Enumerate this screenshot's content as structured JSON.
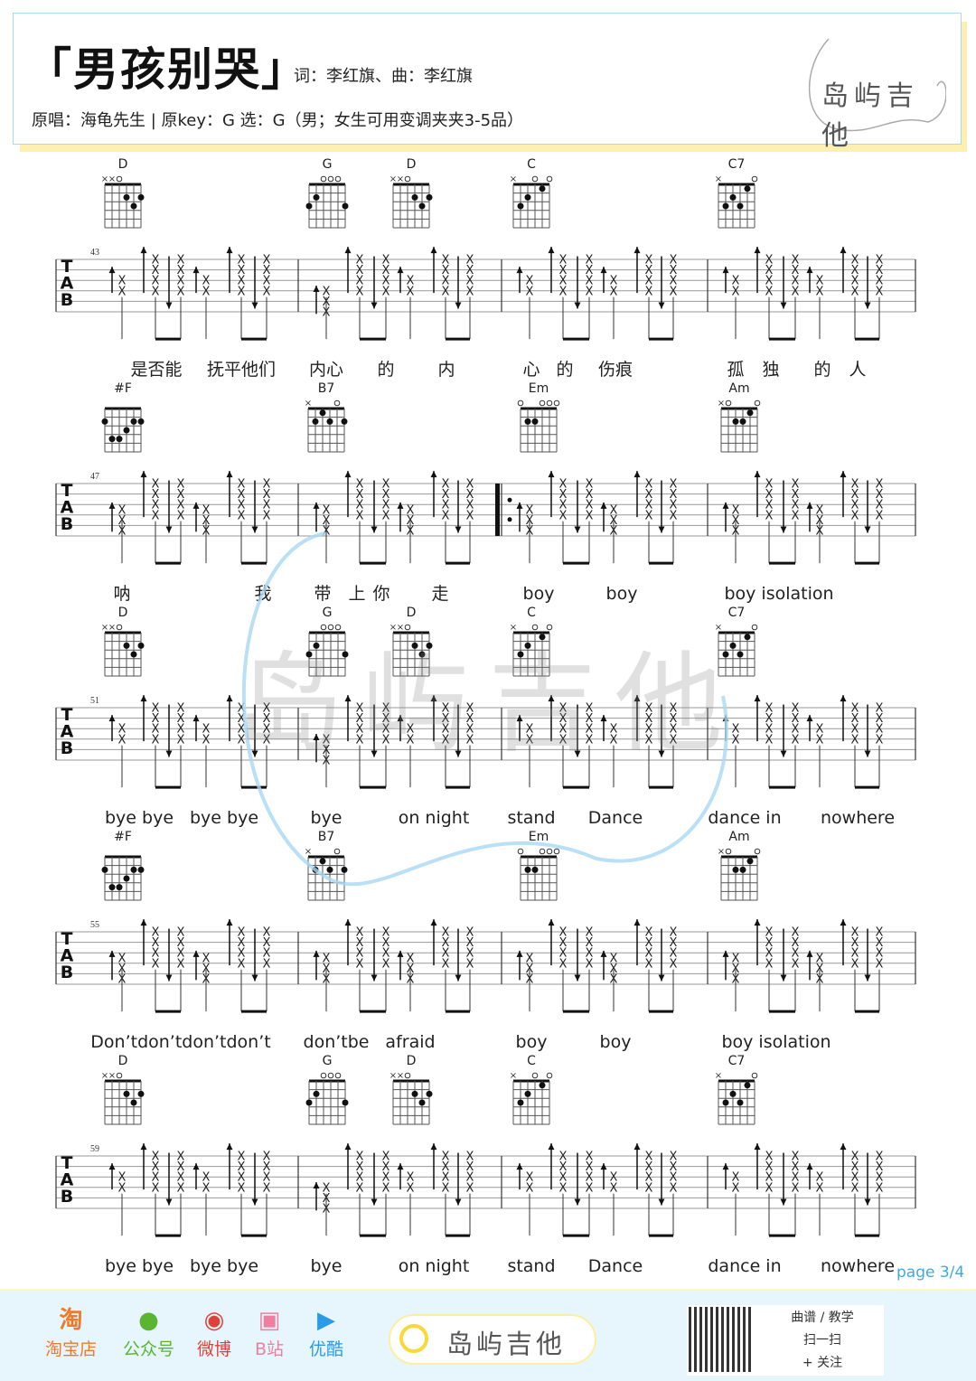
{
  "header": {
    "title": "「男孩别哭」",
    "credits": "词：李红旗、曲：李红旗",
    "meta": "原唱：海龟先生 | 原key：G 选：G（男；女生可用变调夹夹3-5品）",
    "logo_text": "岛屿吉他"
  },
  "systems": [
    {
      "measure_number": "43",
      "chords": [
        {
          "name": "D",
          "fingering": "xx0232"
        },
        {
          "name": "G",
          "fingering": "320003"
        },
        {
          "name": "D",
          "fingering": "xx0232"
        },
        {
          "name": "C",
          "fingering": "x32010"
        },
        {
          "name": "C7",
          "fingering": "x32310"
        }
      ],
      "lyrics": [
        "是否能",
        "抚平他们",
        "内心",
        "的",
        "内",
        "心",
        "的",
        "伤痕",
        "孤",
        "独",
        "的",
        "人"
      ]
    },
    {
      "measure_number": "47",
      "chords": [
        {
          "name": "#F",
          "fingering": "244322"
        },
        {
          "name": "B7",
          "fingering": "x21202"
        },
        {
          "name": "Em",
          "fingering": "022000"
        },
        {
          "name": "Am",
          "fingering": "x02210"
        }
      ],
      "lyrics": [
        "呐",
        "我",
        "带",
        "上",
        "你",
        "走",
        "boy",
        "boy",
        "boy  isolation"
      ]
    },
    {
      "measure_number": "51",
      "chords": [
        {
          "name": "D",
          "fingering": "xx0232"
        },
        {
          "name": "G",
          "fingering": "320003"
        },
        {
          "name": "D",
          "fingering": "xx0232"
        },
        {
          "name": "C",
          "fingering": "x32010"
        },
        {
          "name": "C7",
          "fingering": "x32310"
        }
      ],
      "lyrics": [
        "bye bye",
        "bye bye",
        "bye",
        "on night",
        "stand",
        "Dance",
        "dance in",
        "nowhere"
      ]
    },
    {
      "measure_number": "55",
      "chords": [
        {
          "name": "#F",
          "fingering": "244322"
        },
        {
          "name": "B7",
          "fingering": "x21202"
        },
        {
          "name": "Em",
          "fingering": "022000"
        },
        {
          "name": "Am",
          "fingering": "x02210"
        }
      ],
      "lyrics": [
        "Don’tdon’tdon’tdon’t",
        "don’tbe",
        "afraid",
        "boy",
        "boy",
        "boy  isolation"
      ]
    },
    {
      "measure_number": "59",
      "chords": [
        {
          "name": "D",
          "fingering": "xx0232"
        },
        {
          "name": "G",
          "fingering": "320003"
        },
        {
          "name": "D",
          "fingering": "xx0232"
        },
        {
          "name": "C",
          "fingering": "x32010"
        },
        {
          "name": "C7",
          "fingering": "x32310"
        }
      ],
      "lyrics": [
        "bye bye",
        "bye bye",
        "bye",
        "on night",
        "stand",
        "Dance",
        "dance in",
        "nowhere"
      ]
    }
  ],
  "tab_clef": [
    "T",
    "A",
    "B"
  ],
  "page_label": "page 3/4",
  "footer": {
    "links": [
      {
        "icon": "taobao-icon",
        "glyph": "淘",
        "label": "淘宝店",
        "color": "#f07a2a"
      },
      {
        "icon": "wechat-icon",
        "glyph": "●",
        "label": "公众号",
        "color": "#5cb531"
      },
      {
        "icon": "weibo-icon",
        "glyph": "◉",
        "label": "微博",
        "color": "#e0403a"
      },
      {
        "icon": "bilibili-icon",
        "glyph": "▣",
        "label": "B站",
        "color": "#ef7fa0"
      },
      {
        "icon": "youku-icon",
        "glyph": "▶",
        "label": "优酷",
        "color": "#2a9be8"
      }
    ],
    "search_text": "岛屿吉他",
    "qr_lines": [
      "曲谱 / 教学",
      "扫一扫",
      "+ 关注"
    ]
  }
}
